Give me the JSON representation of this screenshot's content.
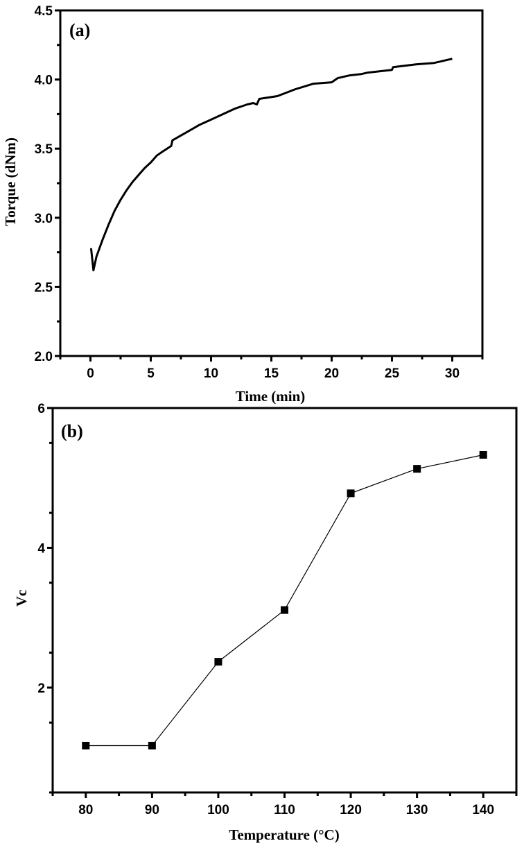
{
  "chart_data": [
    {
      "type": "line",
      "panel_label": "(a)",
      "xlabel": "Time (min)",
      "ylabel": "Torque (dNm)",
      "xlim": [
        -2.5,
        32.5
      ],
      "ylim": [
        2.0,
        4.5
      ],
      "xticks": [
        "0",
        "5",
        "10",
        "15",
        "20",
        "25",
        "30"
      ],
      "yticks": [
        "2.0",
        "2.5",
        "3.0",
        "3.5",
        "4.0",
        "4.5"
      ],
      "grid": false,
      "series": [
        {
          "color": "#000000",
          "x": [
            0.05,
            0.25,
            0.5,
            1,
            1.5,
            2,
            2.5,
            3,
            3.5,
            4,
            4.5,
            5,
            5.5,
            6,
            6.7,
            6.8,
            8,
            9,
            10,
            11,
            12,
            13,
            13.5,
            13.8,
            14,
            15.5,
            17,
            18.5,
            20,
            20.5,
            21.5,
            22.5,
            23,
            25,
            25.1,
            27,
            28.5,
            29.5,
            30
          ],
          "y": [
            2.78,
            2.62,
            2.72,
            2.84,
            2.95,
            3.05,
            3.13,
            3.2,
            3.26,
            3.31,
            3.36,
            3.4,
            3.45,
            3.48,
            3.52,
            3.56,
            3.62,
            3.67,
            3.71,
            3.75,
            3.79,
            3.82,
            3.83,
            3.82,
            3.86,
            3.88,
            3.93,
            3.97,
            3.98,
            4.01,
            4.03,
            4.04,
            4.05,
            4.07,
            4.09,
            4.11,
            4.12,
            4.14,
            4.15
          ]
        }
      ]
    },
    {
      "type": "line",
      "panel_label": "(b)",
      "xlabel": "Temperature (°C)",
      "ylabel": "Vc",
      "xlim": [
        75,
        145
      ],
      "ylim": [
        0.5,
        6
      ],
      "xticks": [
        "80",
        "90",
        "100",
        "110",
        "120",
        "130",
        "140"
      ],
      "yticks": [
        "2",
        "4",
        "6"
      ],
      "grid": false,
      "marker": "square",
      "series": [
        {
          "color": "#000000",
          "x": [
            80,
            90,
            100,
            110,
            120,
            130,
            140
          ],
          "y": [
            1.17,
            1.17,
            2.37,
            3.11,
            4.78,
            5.13,
            5.33
          ]
        }
      ]
    }
  ]
}
